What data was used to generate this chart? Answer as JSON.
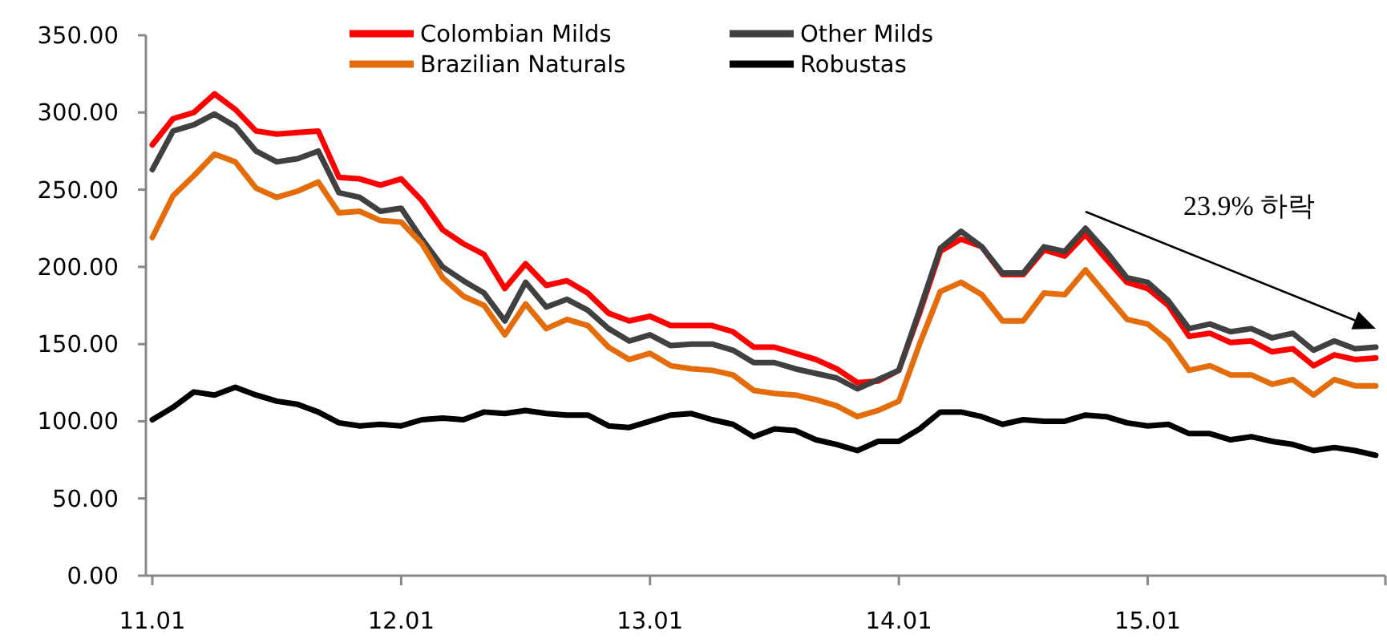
{
  "chart_data": {
    "type": "line",
    "categories": [
      "11.01",
      null,
      null,
      null,
      null,
      null,
      null,
      null,
      null,
      null,
      null,
      null,
      "12.01",
      null,
      null,
      null,
      null,
      null,
      null,
      null,
      null,
      null,
      null,
      null,
      "13.01",
      null,
      null,
      null,
      null,
      null,
      null,
      null,
      null,
      null,
      null,
      null,
      "14.01",
      null,
      null,
      null,
      null,
      null,
      null,
      null,
      null,
      null,
      null,
      null,
      "15.01",
      null,
      null,
      null,
      null,
      null,
      null,
      null,
      null,
      null,
      null,
      null
    ],
    "series": [
      {
        "name": "Colombian Milds",
        "color": "#ff0000",
        "values": [
          279,
          296,
          300,
          312,
          302,
          288,
          286,
          287,
          288,
          258,
          257,
          253,
          257,
          243,
          224,
          215,
          208,
          186,
          202,
          188,
          191,
          183,
          170,
          165,
          168,
          162,
          162,
          162,
          158,
          148,
          148,
          144,
          140,
          134,
          125,
          126,
          133,
          170,
          210,
          218,
          213,
          195,
          195,
          211,
          207,
          221,
          205,
          190,
          186,
          175,
          155,
          157,
          151,
          152,
          145,
          147,
          136,
          143,
          140,
          141
        ]
      },
      {
        "name": "Other Milds",
        "color": "#404040",
        "values": [
          263,
          288,
          292,
          299,
          291,
          275,
          268,
          270,
          275,
          248,
          245,
          236,
          238,
          218,
          200,
          191,
          183,
          165,
          190,
          174,
          179,
          172,
          160,
          152,
          156,
          149,
          150,
          150,
          146,
          138,
          138,
          134,
          131,
          128,
          121,
          127,
          133,
          172,
          212,
          223,
          213,
          196,
          196,
          213,
          210,
          225,
          210,
          193,
          190,
          178,
          160,
          163,
          158,
          160,
          154,
          157,
          146,
          152,
          147,
          148
        ]
      },
      {
        "name": "Brazilian Naturals",
        "color": "#e46c0a",
        "values": [
          219,
          246,
          259,
          273,
          268,
          251,
          245,
          249,
          255,
          235,
          236,
          230,
          229,
          215,
          193,
          181,
          175,
          156,
          176,
          160,
          166,
          162,
          148,
          140,
          144,
          136,
          134,
          133,
          130,
          120,
          118,
          117,
          114,
          110,
          103,
          107,
          113,
          150,
          184,
          190,
          182,
          165,
          165,
          183,
          182,
          198,
          182,
          166,
          163,
          152,
          133,
          136,
          130,
          130,
          124,
          127,
          117,
          127,
          123,
          123
        ]
      },
      {
        "name": "Robustas",
        "color": "#000000",
        "values": [
          101,
          109,
          119,
          117,
          122,
          117,
          113,
          111,
          106,
          99,
          97,
          98,
          97,
          101,
          102,
          101,
          106,
          105,
          107,
          105,
          104,
          104,
          97,
          96,
          100,
          104,
          105,
          101,
          98,
          90,
          95,
          94,
          88,
          85,
          81,
          87,
          87,
          95,
          106,
          106,
          103,
          98,
          101,
          100,
          100,
          104,
          103,
          99,
          97,
          98,
          92,
          92,
          88,
          90,
          87,
          85,
          81,
          83,
          81,
          78
        ]
      }
    ],
    "ylim": [
      0,
      350
    ],
    "yticks": [
      {
        "value": 0,
        "label": "0.00"
      },
      {
        "value": 50,
        "label": "50.00"
      },
      {
        "value": 100,
        "label": "100.00"
      },
      {
        "value": 150,
        "label": "150.00"
      },
      {
        "value": 200,
        "label": "200.00"
      },
      {
        "value": 250,
        "label": "250.00"
      },
      {
        "value": 300,
        "label": "300.00"
      },
      {
        "value": 350,
        "label": "350.00"
      }
    ],
    "annotations": [
      "23.9% 하락"
    ],
    "legend": "top",
    "marker": "none",
    "line_style": "solid"
  }
}
